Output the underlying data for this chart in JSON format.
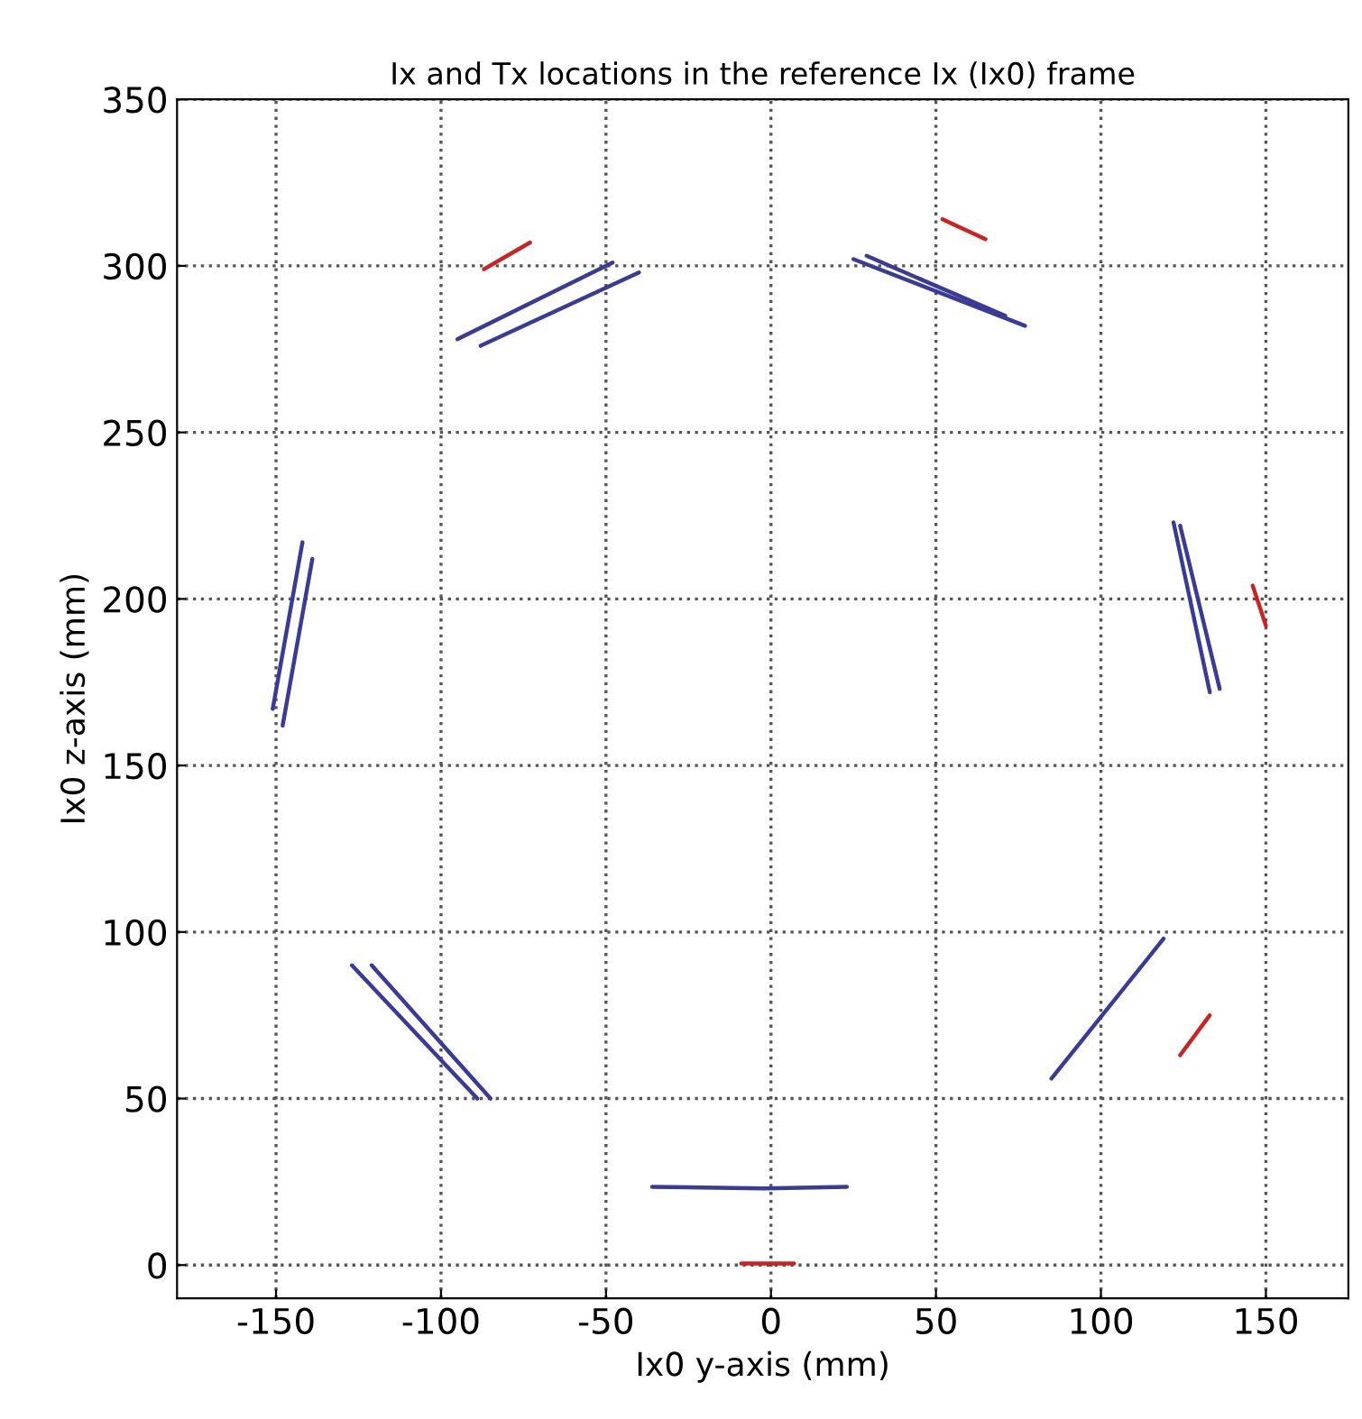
{
  "chart_data": {
    "type": "line",
    "title": "Ix and Tx locations in the reference Ix (Ix0) frame",
    "xlabel": "Ix0 y-axis (mm)",
    "ylabel": "Ix0 z-axis (mm)",
    "xlim": [
      -180,
      175
    ],
    "ylim": [
      -10,
      350
    ],
    "xticks": [
      -150,
      -100,
      -50,
      0,
      50,
      100,
      150
    ],
    "yticks": [
      0,
      50,
      100,
      150,
      200,
      250,
      300,
      350
    ],
    "grid": true,
    "legend": false,
    "marker": "none",
    "line_style": "solid",
    "series": [
      {
        "color": "#cc2222",
        "x": [
          -87,
          -73
        ],
        "values": [
          299,
          307
        ]
      },
      {
        "color": "#3a3a99",
        "x": [
          -95,
          -48
        ],
        "values": [
          278,
          301
        ]
      },
      {
        "color": "#3a3a99",
        "x": [
          -88,
          -40
        ],
        "values": [
          276,
          298
        ]
      },
      {
        "color": "#3a3a99",
        "x": [
          25,
          77
        ],
        "values": [
          302,
          282
        ]
      },
      {
        "color": "#3a3a99",
        "x": [
          29,
          71
        ],
        "values": [
          303,
          285
        ]
      },
      {
        "color": "#cc2222",
        "x": [
          52,
          65
        ],
        "values": [
          314,
          308
        ]
      },
      {
        "color": "#3a3a99",
        "x": [
          -142,
          -151
        ],
        "values": [
          217,
          167
        ]
      },
      {
        "color": "#3a3a99",
        "x": [
          -139,
          -148
        ],
        "values": [
          212,
          162
        ]
      },
      {
        "color": "#3a3a99",
        "x": [
          122,
          133
        ],
        "values": [
          223,
          172
        ]
      },
      {
        "color": "#3a3a99",
        "x": [
          124,
          136
        ],
        "values": [
          222,
          173
        ]
      },
      {
        "color": "#cc2222",
        "x": [
          146,
          150
        ],
        "values": [
          204,
          192
        ]
      },
      {
        "color": "#3a3a99",
        "x": [
          -127,
          -89
        ],
        "values": [
          90,
          50
        ]
      },
      {
        "color": "#3a3a99",
        "x": [
          -121,
          -85
        ],
        "values": [
          90,
          50
        ]
      },
      {
        "color": "#3a3a99",
        "x": [
          -36,
          -2,
          23
        ],
        "values": [
          23.5,
          23,
          23.5
        ]
      },
      {
        "color": "#3a3a99",
        "x": [
          85,
          119
        ],
        "values": [
          56,
          98
        ]
      },
      {
        "color": "#cc2222",
        "x": [
          124,
          133
        ],
        "values": [
          63,
          75
        ]
      },
      {
        "color": "#cc2222",
        "x": [
          -9,
          7
        ],
        "values": [
          0.5,
          0.5
        ]
      }
    ]
  }
}
